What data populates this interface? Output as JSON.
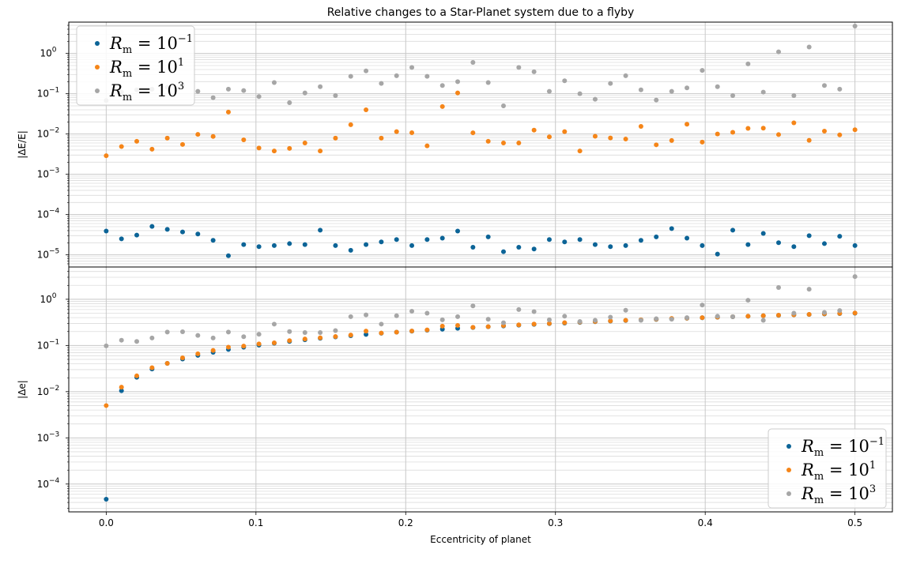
{
  "chart_data": [
    {
      "type": "scatter",
      "title": "Relative changes to a Star-Planet system due to a flyby",
      "ylabel": "|ΔE/E|",
      "xlabel": "",
      "yscale": "log",
      "ylim": [
        5e-06,
        6
      ],
      "xlim": [
        -0.025,
        0.525
      ],
      "grid": true,
      "legend_position": "top-left",
      "x_ticks": [
        "0.0",
        "0.1",
        "0.2",
        "0.3",
        "0.4",
        "0.5"
      ],
      "y_ticks": [
        {
          "value": 1e-05,
          "base": "10",
          "exp": "−5"
        },
        {
          "value": 0.0001,
          "base": "10",
          "exp": "−4"
        },
        {
          "value": 0.001,
          "base": "10",
          "exp": "−3"
        },
        {
          "value": 0.01,
          "base": "10",
          "exp": "−2"
        },
        {
          "value": 0.1,
          "base": "10",
          "exp": "−1"
        },
        {
          "value": 1,
          "base": "10",
          "exp": "0"
        }
      ],
      "x": [
        0.0,
        0.0102,
        0.0204,
        0.0306,
        0.0408,
        0.051,
        0.0612,
        0.0714,
        0.0816,
        0.0918,
        0.102,
        0.1122,
        0.1224,
        0.1327,
        0.1429,
        0.1531,
        0.1633,
        0.1735,
        0.1837,
        0.1939,
        0.2041,
        0.2143,
        0.2245,
        0.2347,
        0.2449,
        0.2551,
        0.2653,
        0.2755,
        0.2857,
        0.2959,
        0.3061,
        0.3163,
        0.3265,
        0.3367,
        0.3469,
        0.3571,
        0.3673,
        0.3776,
        0.3878,
        0.398,
        0.4082,
        0.4184,
        0.4286,
        0.4388,
        0.449,
        0.4592,
        0.4694,
        0.4796,
        0.4898,
        0.5
      ],
      "series": [
        {
          "name_base": "R",
          "name_sub": "m",
          "name_eq": " = 10",
          "name_exp": "−1",
          "color": "#0c6497",
          "values": [
            3.9e-05,
            2.5e-05,
            3.1e-05,
            5.1e-05,
            4.3e-05,
            3.7e-05,
            3.3e-05,
            2.3e-05,
            9.5e-06,
            1.8e-05,
            1.6e-05,
            1.7e-05,
            1.9e-05,
            1.8e-05,
            4.1e-05,
            1.7e-05,
            1.3e-05,
            1.8e-05,
            2.1e-05,
            2.4e-05,
            1.7e-05,
            2.4e-05,
            2.6e-05,
            3.9e-05,
            1.55e-05,
            2.8e-05,
            1.2e-05,
            1.55e-05,
            1.4e-05,
            2.4e-05,
            2.1e-05,
            2.4e-05,
            1.8e-05,
            1.6e-05,
            1.7e-05,
            2.3e-05,
            2.8e-05,
            4.5e-05,
            2.6e-05,
            1.7e-05,
            1.05e-05,
            4.1e-05,
            1.8e-05,
            3.4e-05,
            2e-05,
            1.6e-05,
            3e-05,
            1.9e-05,
            2.9e-05,
            1.7e-05
          ]
        },
        {
          "name_base": "R",
          "name_sub": "m",
          "name_eq": " = 10",
          "name_exp": "1",
          "color": "#f58518",
          "values": [
            0.0029,
            0.0049,
            0.0066,
            0.0042,
            0.0079,
            0.0055,
            0.0098,
            0.0087,
            0.035,
            0.0072,
            0.0045,
            0.0038,
            0.0044,
            0.006,
            0.0038,
            0.0079,
            0.017,
            0.04,
            0.0079,
            0.0115,
            0.0108,
            0.0051,
            0.048,
            0.105,
            0.0107,
            0.0066,
            0.006,
            0.006,
            0.0125,
            0.0085,
            0.0115,
            0.0038,
            0.0088,
            0.008,
            0.0075,
            0.0155,
            0.0054,
            0.0069,
            0.0175,
            0.0063,
            0.01,
            0.011,
            0.0138,
            0.014,
            0.0097,
            0.019,
            0.007,
            0.0118,
            0.0095,
            0.0128
          ]
        },
        {
          "name_base": "R",
          "name_sub": "m",
          "name_eq": " = 10",
          "name_exp": "3",
          "color": "#a6a6a6",
          "values": [
            0.068,
            0.11,
            0.125,
            0.13,
            0.145,
            0.16,
            0.115,
            0.08,
            0.13,
            0.12,
            0.085,
            0.19,
            0.06,
            0.105,
            0.15,
            0.09,
            0.27,
            0.37,
            0.18,
            0.28,
            0.45,
            0.27,
            0.16,
            0.2,
            0.6,
            0.19,
            0.05,
            0.45,
            0.35,
            0.115,
            0.21,
            0.1,
            0.073,
            0.18,
            0.28,
            0.125,
            0.07,
            0.115,
            0.14,
            0.38,
            0.15,
            0.09,
            0.55,
            0.11,
            1.1,
            0.09,
            1.45,
            0.16,
            0.13,
            4.8
          ]
        }
      ]
    },
    {
      "type": "scatter",
      "title": "",
      "ylabel": "|Δe|",
      "xlabel": "Eccentricity of planet",
      "yscale": "log",
      "ylim": [
        2.5e-05,
        5
      ],
      "xlim": [
        -0.025,
        0.525
      ],
      "grid": true,
      "legend_position": "bottom-right",
      "x_ticks": [
        "0.0",
        "0.1",
        "0.2",
        "0.3",
        "0.4",
        "0.5"
      ],
      "y_ticks": [
        {
          "value": 0.0001,
          "base": "10",
          "exp": "−4"
        },
        {
          "value": 0.001,
          "base": "10",
          "exp": "−3"
        },
        {
          "value": 0.01,
          "base": "10",
          "exp": "−2"
        },
        {
          "value": 0.1,
          "base": "10",
          "exp": "−1"
        },
        {
          "value": 1,
          "base": "10",
          "exp": "0"
        }
      ],
      "x": [
        0.0,
        0.0102,
        0.0204,
        0.0306,
        0.0408,
        0.051,
        0.0612,
        0.0714,
        0.0816,
        0.0918,
        0.102,
        0.1122,
        0.1224,
        0.1327,
        0.1429,
        0.1531,
        0.1633,
        0.1735,
        0.1837,
        0.1939,
        0.2041,
        0.2143,
        0.2245,
        0.2347,
        0.2449,
        0.2551,
        0.2653,
        0.2755,
        0.2857,
        0.2959,
        0.3061,
        0.3163,
        0.3265,
        0.3367,
        0.3469,
        0.3571,
        0.3673,
        0.3776,
        0.3878,
        0.398,
        0.4082,
        0.4184,
        0.4286,
        0.4388,
        0.449,
        0.4592,
        0.4694,
        0.4796,
        0.4898,
        0.5
      ],
      "series": [
        {
          "name_base": "R",
          "name_sub": "m",
          "name_eq": " = 10",
          "name_exp": "−1",
          "color": "#0c6497",
          "values": [
            4.7e-05,
            0.0105,
            0.0205,
            0.031,
            0.041,
            0.051,
            0.061,
            0.071,
            0.082,
            0.092,
            0.102,
            0.112,
            0.122,
            0.133,
            0.143,
            0.153,
            0.163,
            0.173,
            0.184,
            0.194,
            0.204,
            0.214,
            0.225,
            0.235,
            0.245,
            0.255,
            0.265,
            0.276,
            0.286,
            0.296,
            0.306,
            0.316,
            0.327,
            0.337,
            0.347,
            0.357,
            0.367,
            0.378,
            0.388,
            0.398,
            0.408,
            0.418,
            0.429,
            0.439,
            0.449,
            0.459,
            0.469,
            0.48,
            0.49,
            0.5
          ]
        },
        {
          "name_base": "R",
          "name_sub": "m",
          "name_eq": " = 10",
          "name_exp": "1",
          "color": "#f58518",
          "values": [
            0.005,
            0.0125,
            0.022,
            0.033,
            0.041,
            0.054,
            0.066,
            0.078,
            0.092,
            0.097,
            0.108,
            0.114,
            0.127,
            0.138,
            0.147,
            0.156,
            0.168,
            0.205,
            0.186,
            0.194,
            0.206,
            0.217,
            0.262,
            0.272,
            0.247,
            0.256,
            0.27,
            0.28,
            0.291,
            0.3,
            0.311,
            0.321,
            0.33,
            0.341,
            0.35,
            0.36,
            0.37,
            0.384,
            0.39,
            0.4,
            0.411,
            0.42,
            0.43,
            0.442,
            0.452,
            0.462,
            0.472,
            0.484,
            0.494,
            0.504
          ]
        },
        {
          "name_base": "R",
          "name_sub": "m",
          "name_eq": " = 10",
          "name_exp": "3",
          "color": "#a6a6a6",
          "values": [
            0.098,
            0.13,
            0.122,
            0.145,
            0.195,
            0.198,
            0.165,
            0.145,
            0.195,
            0.155,
            0.175,
            0.29,
            0.2,
            0.19,
            0.19,
            0.21,
            0.42,
            0.46,
            0.29,
            0.44,
            0.55,
            0.5,
            0.36,
            0.42,
            0.72,
            0.37,
            0.31,
            0.6,
            0.54,
            0.36,
            0.43,
            0.33,
            0.35,
            0.41,
            0.58,
            0.35,
            0.38,
            0.37,
            0.4,
            0.75,
            0.43,
            0.42,
            0.95,
            0.35,
            1.8,
            0.5,
            1.65,
            0.52,
            0.57,
            3.1
          ]
        }
      ]
    }
  ]
}
